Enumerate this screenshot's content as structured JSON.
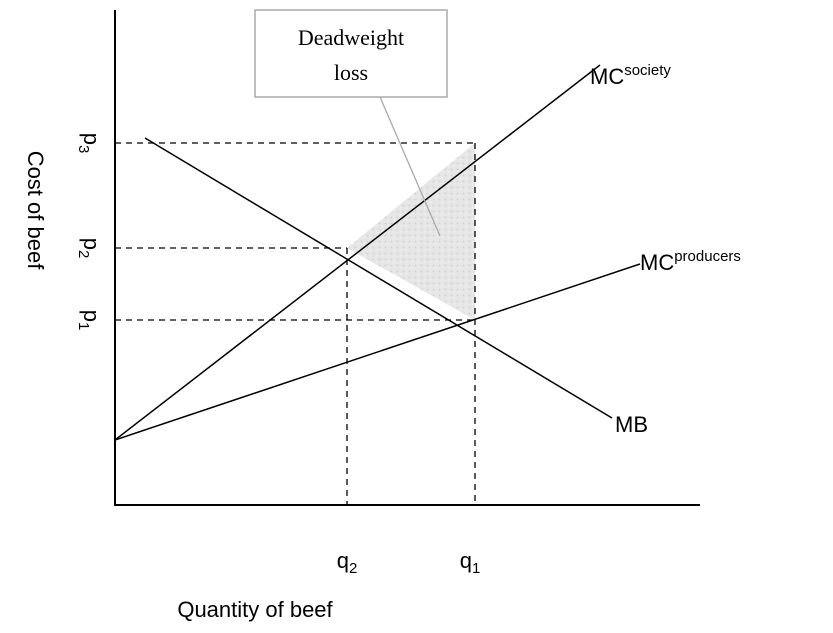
{
  "callout": {
    "lines": [
      "Deadweight",
      "loss"
    ]
  },
  "curves": [
    {
      "label": "MC",
      "superscript": "society"
    },
    {
      "label": "MC",
      "superscript": "producers"
    },
    {
      "label": "MB"
    }
  ],
  "axes": {
    "y_label": "Cost of beef",
    "x_label": "Quantity of beef"
  },
  "y_marks": [
    {
      "label": "p",
      "subscript": "3"
    },
    {
      "label": "p",
      "subscript": "2"
    },
    {
      "label": "p",
      "subscript": "1"
    }
  ],
  "x_marks": [
    {
      "label": "q",
      "subscript": "2"
    },
    {
      "label": "q",
      "subscript": "1"
    }
  ]
}
